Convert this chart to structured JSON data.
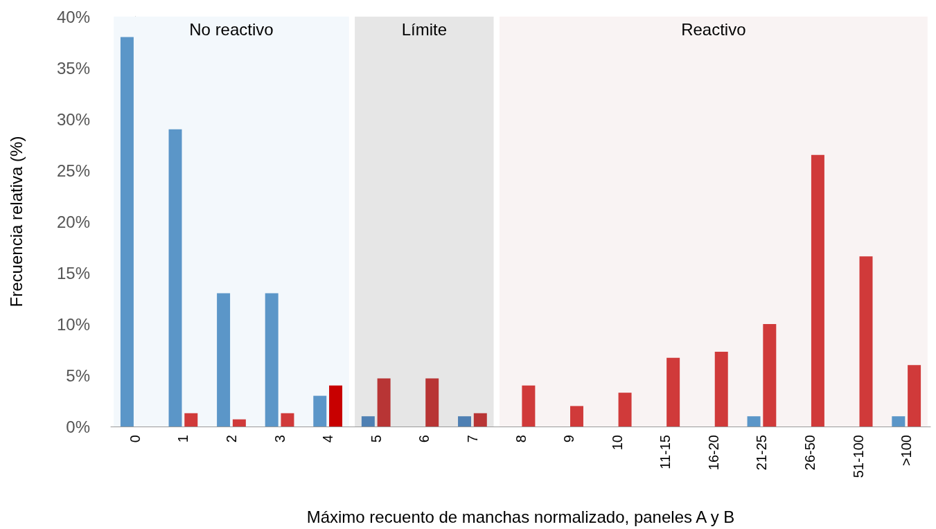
{
  "chart_data": {
    "type": "bar",
    "xlabel": "Máximo recuento de manchas normalizado, paneles A y B",
    "ylabel": "Frecuencia relativa (%)",
    "categories": [
      "0",
      "1",
      "2",
      "3",
      "4",
      "5",
      "6",
      "7",
      "8",
      "9",
      "10",
      "11-15",
      "16-20",
      "21-25",
      "26-50",
      "51-100",
      ">100"
    ],
    "series": [
      {
        "colors": [
          "#5b96c8",
          "#5b96c8",
          "#5b96c8",
          "#5b96c8",
          "#5b96c8",
          "#4f80b3",
          "#4f80b3",
          "#4f80b3",
          "#5b96c8",
          "#5b96c8",
          "#5b96c8",
          "#5b96c8",
          "#5b96c8",
          "#5b96c8",
          "#5b96c8",
          "#5b96c8",
          "#5b96c8"
        ],
        "values": [
          38,
          29,
          13,
          13,
          3,
          1,
          0,
          1,
          0,
          0,
          0,
          0,
          0,
          1,
          0,
          0,
          1
        ]
      },
      {
        "colors": [
          "#d03a3a",
          "#d03a3a",
          "#d03a3a",
          "#d03a3a",
          "#c80000",
          "#b83535",
          "#b83535",
          "#b83535",
          "#d03a3a",
          "#d03a3a",
          "#d03a3a",
          "#d03a3a",
          "#d03a3a",
          "#d03a3a",
          "#d03a3a",
          "#d03a3a",
          "#d03a3a"
        ],
        "values": [
          0,
          1.3,
          0.7,
          1.3,
          4,
          4.7,
          4.7,
          1.3,
          4,
          2,
          3.3,
          6.7,
          7.3,
          10,
          26.5,
          16.6,
          6
        ]
      }
    ],
    "ylim": [
      0,
      40
    ],
    "yticks": [
      {
        "value": 0,
        "label": "0%"
      },
      {
        "value": 5,
        "label": "5%"
      },
      {
        "value": 10,
        "label": "10%"
      },
      {
        "value": 15,
        "label": "15%"
      },
      {
        "value": 20,
        "label": "20%"
      },
      {
        "value": 25,
        "label": "25%"
      },
      {
        "value": 30,
        "label": "30%"
      },
      {
        "value": 35,
        "label": "35%"
      },
      {
        "value": 40,
        "label": "40%"
      }
    ],
    "bands": [
      {
        "axis": "x",
        "from": "0",
        "to": "4",
        "label": "No reactivo",
        "color": "#f3f8fc"
      },
      {
        "axis": "x",
        "from": "5",
        "to": "7",
        "label": "Límite",
        "color": "#e6e6e6"
      },
      {
        "axis": "x",
        "from": "8",
        "to": ">100",
        "label": "Reactivo",
        "color": "#f9f3f3"
      }
    ]
  }
}
